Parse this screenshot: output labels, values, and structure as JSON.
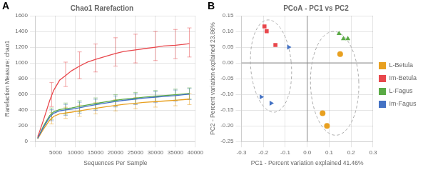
{
  "chart_data": [
    {
      "type": "line",
      "panel_label": "A",
      "title": "Chao1 Rarefaction",
      "xlabel": "Sequences Per Sample",
      "ylabel": "Rarefaction Measure: chao1",
      "xlim": [
        0,
        40000
      ],
      "ylim": [
        0,
        1600
      ],
      "xticks": [
        {
          "value": 0,
          "label": null
        },
        5000,
        10000,
        15000,
        20000,
        25000,
        30000,
        35000,
        40000
      ],
      "yticks": [
        0,
        200,
        400,
        600,
        800,
        1000,
        1200,
        1400,
        1600
      ],
      "grid": true,
      "errbar_x": [
        4000,
        7500,
        11000,
        15000,
        20000,
        25000,
        30000,
        35000,
        38500
      ],
      "series": [
        {
          "color": "#e8474c",
          "x": [
            500,
            1000,
            2000,
            3500,
            4500,
            6000,
            7500,
            9000,
            11000,
            13000,
            15000,
            18000,
            20000,
            22000,
            25000,
            27000,
            30000,
            32000,
            35000,
            37000,
            38500
          ],
          "values": [
            60,
            130,
            280,
            520,
            650,
            780,
            840,
            900,
            960,
            1010,
            1045,
            1090,
            1120,
            1145,
            1165,
            1180,
            1200,
            1215,
            1225,
            1235,
            1245
          ],
          "err_low": [
            445,
            700,
            800,
            885,
            960,
            1000,
            1030,
            1055,
            1075
          ],
          "err_high": [
            750,
            1010,
            1140,
            1240,
            1320,
            1365,
            1400,
            1425,
            1445
          ]
        },
        {
          "color": "#4472c4",
          "x": [
            500,
            1000,
            2000,
            3500,
            4500,
            6000,
            7500,
            9000,
            11000,
            13000,
            15000,
            18000,
            20000,
            22000,
            25000,
            27000,
            30000,
            32000,
            35000,
            37000,
            38500
          ],
          "values": [
            40,
            90,
            185,
            310,
            360,
            390,
            402,
            412,
            430,
            450,
            468,
            494,
            510,
            524,
            540,
            552,
            565,
            573,
            585,
            595,
            603
          ],
          "err_low": [
            265,
            332,
            360,
            398,
            440,
            470,
            495,
            515,
            533
          ],
          "err_high": [
            405,
            472,
            500,
            538,
            580,
            610,
            635,
            655,
            673
          ]
        },
        {
          "color": "#5aaa45",
          "x": [
            500,
            1000,
            2000,
            3500,
            4500,
            6000,
            7500,
            9000,
            11000,
            13000,
            15000,
            18000,
            20000,
            22000,
            25000,
            27000,
            30000,
            32000,
            35000,
            37000,
            38500
          ],
          "values": [
            45,
            95,
            200,
            330,
            378,
            407,
            418,
            428,
            447,
            466,
            483,
            509,
            524,
            538,
            553,
            564,
            577,
            584,
            595,
            604,
            611
          ],
          "err_low": [
            283,
            348,
            377,
            413,
            454,
            483,
            507,
            525,
            541
          ],
          "err_high": [
            427.5,
            490,
            519,
            555,
            596,
            625,
            649,
            667,
            683
          ]
        },
        {
          "color": "#e8a020",
          "x": [
            500,
            1000,
            2000,
            3500,
            4500,
            6000,
            7500,
            9000,
            11000,
            13000,
            15000,
            18000,
            20000,
            22000,
            25000,
            27000,
            30000,
            32000,
            35000,
            37000,
            38500
          ],
          "values": [
            35,
            78,
            162,
            270,
            320,
            352,
            364,
            374,
            391,
            408,
            422,
            446,
            460,
            473,
            487,
            497,
            508,
            515,
            525,
            533,
            540
          ],
          "err_low": [
            224,
            294,
            321,
            352,
            390,
            417,
            438,
            455,
            470
          ],
          "err_high": [
            367,
            436,
            463,
            494,
            532,
            559,
            580,
            597,
            612
          ]
        }
      ]
    },
    {
      "type": "scatter",
      "panel_label": "B",
      "title": "PCoA - PC1 vs PC2",
      "xlabel": "PC1 - Percent variation explained 41.46%",
      "ylabel": "PC2 - Percent variation explained 23.86%",
      "xlim": [
        -0.3,
        0.3
      ],
      "ylim": [
        -0.25,
        0.15
      ],
      "xticks": [
        -0.3,
        -0.2,
        -0.1,
        {
          "value": 0,
          "label": "0.0"
        },
        0.1,
        0.2,
        0.3
      ],
      "yticks": [
        -0.25,
        {
          "value": -0.2,
          "label": "-0.20"
        },
        -0.15,
        {
          "value": -0.1,
          "label": "-0.10"
        },
        -0.05,
        {
          "value": 0,
          "label": "0.00"
        },
        0.05,
        {
          "value": 0.1,
          "label": "0.10"
        },
        0.15
      ],
      "grid": true,
      "legend": "right",
      "series": [
        {
          "name": "L-Betula",
          "color": "#e8a020",
          "marker": "circle",
          "x": [
            0.07,
            0.09,
            0.15
          ],
          "values": [
            -0.16,
            -0.2,
            0.028
          ]
        },
        {
          "name": "Im-Betula",
          "color": "#e8474c",
          "marker": "square",
          "x": [
            -0.195,
            -0.185,
            -0.145
          ],
          "values": [
            0.116,
            0.101,
            0.057
          ]
        },
        {
          "name": "L-Fagus",
          "color": "#5aaa45",
          "marker": "triangle_up",
          "x": [
            0.145,
            0.165,
            0.185
          ],
          "values": [
            0.093,
            0.077,
            0.077
          ]
        },
        {
          "name": "Im-Fagus",
          "color": "#4472c4",
          "marker": "triangle_right",
          "x": [
            -0.085,
            -0.21,
            -0.165
          ],
          "values": [
            0.05,
            -0.108,
            -0.128
          ]
        }
      ],
      "ellipses": [
        {
          "cx": -0.165,
          "cy": -0.01,
          "width": 0.185,
          "height": 0.295,
          "angle": 8,
          "color": "#aaaaaa",
          "line_style": "dashed"
        },
        {
          "cx": 0.125,
          "cy": -0.065,
          "width": 0.22,
          "height": 0.33,
          "angle": 3,
          "color": "#aaaaaa",
          "line_style": "dashed"
        }
      ],
      "hlines": [
        {
          "value": 0,
          "color": "#888888"
        }
      ],
      "vlines": [
        {
          "value": 0,
          "color": "#888888"
        }
      ]
    }
  ]
}
